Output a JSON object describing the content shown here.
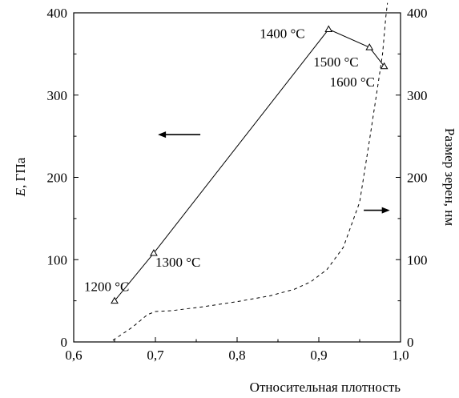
{
  "chart_data": {
    "type": "line",
    "xlabel": "Относительная плотность",
    "ylabel_left_italic": "E",
    "ylabel_left_rest": ", ГПа",
    "ylabel_right": "Размер зерен, нм",
    "xlim": [
      0.6,
      1.0
    ],
    "ylim_left": [
      0,
      400
    ],
    "ylim_right": [
      0,
      400
    ],
    "x_ticks": [
      "0,6",
      "0,7",
      "0,8",
      "0,9",
      "1,0"
    ],
    "y_ticks_left": [
      "0",
      "100",
      "200",
      "300",
      "400"
    ],
    "y_ticks_right": [
      "0",
      "100",
      "200",
      "300",
      "400"
    ],
    "grid": false,
    "series": [
      {
        "axis": "left",
        "style": "solid",
        "marker": "triangle",
        "points": [
          {
            "x": 0.65,
            "y": 50,
            "label": "1200 °C"
          },
          {
            "x": 0.698,
            "y": 108,
            "label": "1300 °C"
          },
          {
            "x": 0.912,
            "y": 380,
            "label": "1400 °C"
          },
          {
            "x": 0.962,
            "y": 358,
            "label": "1500 °C"
          },
          {
            "x": 0.98,
            "y": 335,
            "label": "1600 °C"
          }
        ]
      },
      {
        "axis": "right",
        "style": "dashed",
        "marker": "none",
        "points": [
          {
            "x": 0.648,
            "y": 2
          },
          {
            "x": 0.672,
            "y": 18
          },
          {
            "x": 0.69,
            "y": 33
          },
          {
            "x": 0.7,
            "y": 37
          },
          {
            "x": 0.72,
            "y": 38
          },
          {
            "x": 0.76,
            "y": 43
          },
          {
            "x": 0.8,
            "y": 49
          },
          {
            "x": 0.84,
            "y": 56
          },
          {
            "x": 0.87,
            "y": 64
          },
          {
            "x": 0.89,
            "y": 73
          },
          {
            "x": 0.91,
            "y": 88
          },
          {
            "x": 0.93,
            "y": 115
          },
          {
            "x": 0.95,
            "y": 170
          },
          {
            "x": 0.962,
            "y": 245
          },
          {
            "x": 0.972,
            "y": 310
          },
          {
            "x": 0.978,
            "y": 350
          },
          {
            "x": 0.982,
            "y": 395
          },
          {
            "x": 0.984,
            "y": 412
          }
        ]
      }
    ],
    "arrows": [
      {
        "direction": "left",
        "x_from": 0.755,
        "x_to": 0.705,
        "y": 252,
        "axis": "left"
      },
      {
        "direction": "right",
        "x_from": 0.955,
        "x_to": 0.985,
        "y": 160,
        "axis": "left"
      }
    ]
  }
}
